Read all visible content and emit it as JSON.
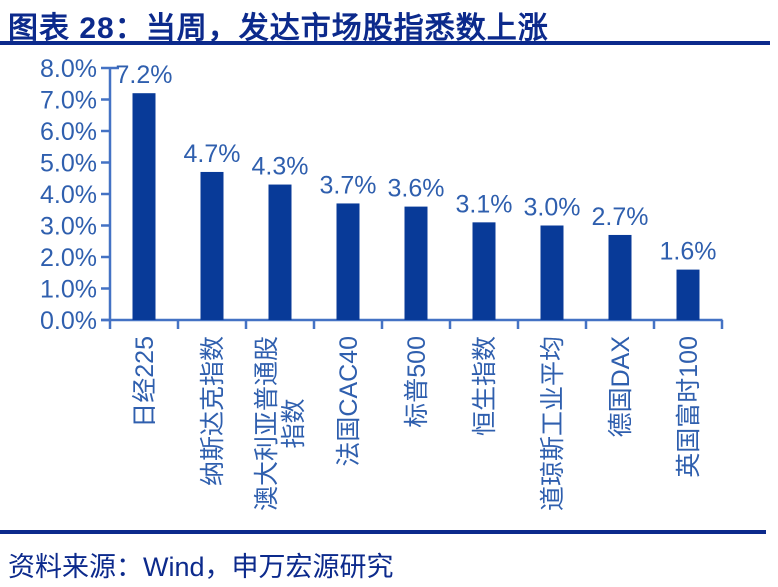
{
  "figure": {
    "title": "图表 28：当周，发达市场股指悉数上涨",
    "source": "资料来源：Wind，申万宏源研究"
  },
  "colors": {
    "heading": "#0c2a8c",
    "bar": "#083a98",
    "axis_line": "#4472c4",
    "chart_text": "#2f5fae"
  },
  "chart_data": {
    "type": "bar",
    "title": "",
    "xlabel": "",
    "ylabel": "",
    "categories": [
      "日经225",
      "纳斯达克指数",
      "澳大利亚普通股指数",
      "法国CAC40",
      "标普500",
      "恒生指数",
      "道琼斯工业平均",
      "德国DAX",
      "英国富时100"
    ],
    "values": [
      7.2,
      4.7,
      4.3,
      3.7,
      3.6,
      3.1,
      3.0,
      2.7,
      1.6
    ],
    "data_labels": [
      "7.2%",
      "4.7%",
      "4.3%",
      "3.7%",
      "3.6%",
      "3.1%",
      "3.0%",
      "2.7%",
      "1.6%"
    ],
    "y_ticks": [
      "0.0%",
      "1.0%",
      "2.0%",
      "3.0%",
      "4.0%",
      "5.0%",
      "6.0%",
      "7.0%",
      "8.0%"
    ],
    "ylim": [
      0,
      8
    ],
    "y_tick_step": 1,
    "grid": false,
    "legend": "none",
    "category_label_rotation": 90,
    "category_wrap": {
      "2": [
        "澳大利亚普通股",
        "指数"
      ]
    }
  }
}
